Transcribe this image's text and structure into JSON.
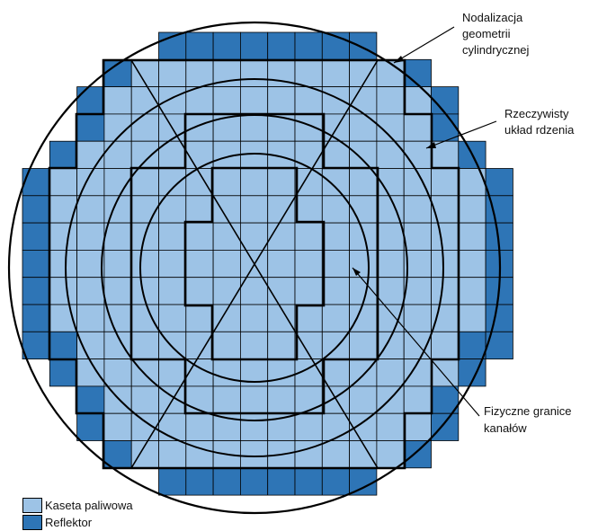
{
  "colors": {
    "fuel": "#9DC3E6",
    "reflector": "#2E75B6",
    "grid_line": "#000000"
  },
  "labels": {
    "nodalization_line1": "Nodalizacja",
    "nodalization_line2": "geometrii",
    "nodalization_line3": "cylindrycznej",
    "real_core_line1": "Rzeczywisty",
    "real_core_line2": "układ rdzenia",
    "channels_line1": "Fizyczne granice",
    "channels_line2": "kanałów"
  },
  "legend": {
    "fuel_label": "Kaseta paliwowa",
    "reflector_label": "Reflektor"
  },
  "core_rows": [
    {
      "fuel_start": 5,
      "fuel_end": 12,
      "refl_start": 5,
      "refl_end": 12
    },
    {
      "fuel_start": 4,
      "fuel_end": 13,
      "refl_start": 3,
      "refl_end": 14
    },
    {
      "fuel_start": 3,
      "fuel_end": 14,
      "refl_start": 2,
      "refl_end": 15
    },
    {
      "fuel_start": 3,
      "fuel_end": 14,
      "refl_start": 2,
      "refl_end": 15
    },
    {
      "fuel_start": 2,
      "fuel_end": 15,
      "refl_start": 1,
      "refl_end": 16
    },
    {
      "fuel_start": 1,
      "fuel_end": 16,
      "refl_start": 0,
      "refl_end": 17
    },
    {
      "fuel_start": 1,
      "fuel_end": 16,
      "refl_start": 0,
      "refl_end": 17
    },
    {
      "fuel_start": 1,
      "fuel_end": 16,
      "refl_start": 0,
      "refl_end": 17
    },
    {
      "fuel_start": 1,
      "fuel_end": 16,
      "refl_start": 0,
      "refl_end": 17
    },
    {
      "fuel_start": 1,
      "fuel_end": 16,
      "refl_start": 0,
      "refl_end": 17
    },
    {
      "fuel_start": 1,
      "fuel_end": 16,
      "refl_start": 0,
      "refl_end": 17
    },
    {
      "fuel_start": 2,
      "fuel_end": 15,
      "refl_start": 0,
      "refl_end": 17
    },
    {
      "fuel_start": 2,
      "fuel_end": 15,
      "refl_start": 1,
      "refl_end": 16
    },
    {
      "fuel_start": 3,
      "fuel_end": 14,
      "refl_start": 2,
      "refl_end": 15
    },
    {
      "fuel_start": 3,
      "fuel_end": 14,
      "refl_start": 2,
      "refl_end": 15
    },
    {
      "fuel_start": 4,
      "fuel_end": 13,
      "refl_start": 3,
      "refl_end": 14
    },
    {
      "fuel_start": 5,
      "fuel_end": 12,
      "refl_start": 5,
      "refl_end": 12
    }
  ]
}
